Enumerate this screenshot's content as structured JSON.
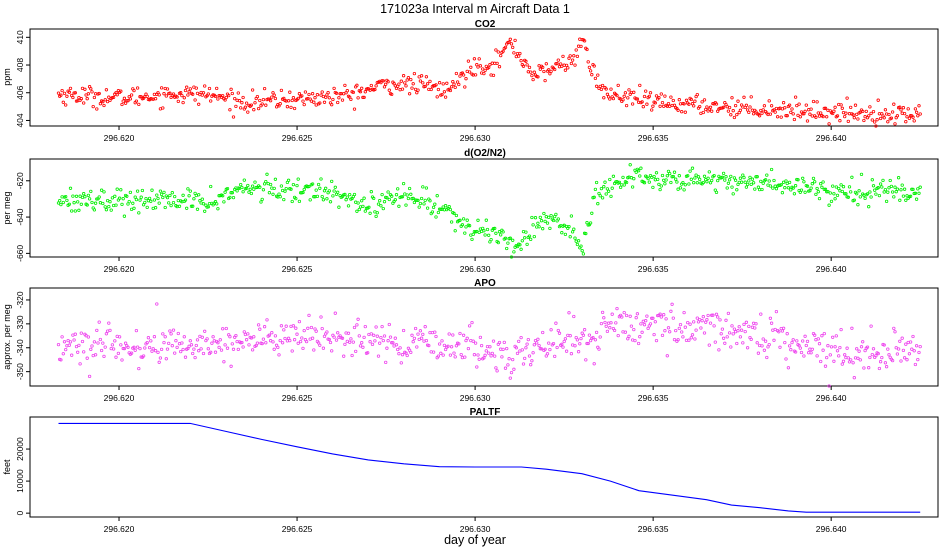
{
  "figure": {
    "title": "171023a   Interval m Aircraft Data 1",
    "xlabel": "day of year"
  },
  "chart_data": [
    {
      "type": "scatter",
      "title": "CO2",
      "ylabel": "ppm",
      "color": "#ff0000",
      "xlim": [
        296.6175,
        296.643
      ],
      "ylim": [
        403.6,
        410.6
      ],
      "xticks": [
        "296.620",
        "296.625",
        "296.630",
        "296.635",
        "296.640"
      ],
      "xtick_values": [
        296.62,
        296.625,
        296.63,
        296.635,
        296.64
      ],
      "yticks": [
        "404",
        "406",
        "408",
        "410"
      ],
      "ytick_values": [
        404,
        406,
        408,
        410
      ],
      "x_start": 296.6183,
      "x_end": 296.6425,
      "n_points": 720,
      "noise": 0.35,
      "trend_x": [
        296.6183,
        296.62,
        296.6215,
        296.6225,
        296.6235,
        296.6255,
        296.6265,
        296.6275,
        296.6285,
        296.6292,
        296.63,
        296.6305,
        296.631,
        296.6313,
        296.6317,
        296.6322,
        296.6327,
        296.633,
        296.6332,
        296.6336,
        296.635,
        296.637,
        296.64,
        296.6425
      ],
      "trend_y": [
        405.9,
        405.6,
        405.9,
        405.9,
        405.3,
        405.6,
        405.8,
        406.6,
        406.6,
        406.1,
        408.0,
        408.0,
        409.6,
        408.5,
        407.2,
        407.8,
        408.3,
        409.7,
        408.2,
        406.0,
        405.3,
        405.0,
        404.6,
        404.4
      ]
    },
    {
      "type": "scatter",
      "title": "d(O2/N2)",
      "ylabel": "per meg",
      "color": "#00ee00",
      "xlim": [
        296.6175,
        296.643
      ],
      "ylim": [
        -662,
        -608
      ],
      "xticks": [
        "296.620",
        "296.625",
        "296.630",
        "296.635",
        "296.640"
      ],
      "xtick_values": [
        296.62,
        296.625,
        296.63,
        296.635,
        296.64
      ],
      "yticks": [
        "-620",
        "-640",
        "-660"
      ],
      "ytick_values": [
        -620,
        -640,
        -660
      ],
      "x_start": 296.6183,
      "x_end": 296.6425,
      "n_points": 720,
      "noise": 3.2,
      "trend_x": [
        296.6183,
        296.62,
        296.6215,
        296.6225,
        296.6235,
        296.625,
        296.626,
        296.627,
        296.628,
        296.629,
        296.63,
        296.6308,
        296.6312,
        296.632,
        296.6327,
        296.633,
        296.6334,
        296.6345,
        296.636,
        296.638,
        296.64,
        296.6425
      ],
      "trend_y": [
        -630,
        -631,
        -631,
        -632,
        -624,
        -626,
        -625,
        -634,
        -628,
        -634,
        -648,
        -650,
        -656,
        -639,
        -648,
        -656,
        -626,
        -618,
        -619,
        -621,
        -625,
        -626
      ]
    },
    {
      "type": "scatter",
      "title": "APO",
      "ylabel": "approx. per meg",
      "color": "#ee44ee",
      "xlim": [
        296.6175,
        296.643
      ],
      "ylim": [
        -356,
        -315
      ],
      "xticks": [
        "296.620",
        "296.625",
        "296.630",
        "296.635",
        "296.640"
      ],
      "xtick_values": [
        296.62,
        296.625,
        296.63,
        296.635,
        296.64
      ],
      "yticks": [
        "-320",
        "-330",
        "-340",
        "-350"
      ],
      "ytick_values": [
        -320,
        -330,
        -340,
        -350
      ],
      "x_start": 296.6183,
      "x_end": 296.6425,
      "n_points": 720,
      "noise": 4.0,
      "trend_x": [
        296.6183,
        296.62,
        296.622,
        296.624,
        296.626,
        296.628,
        296.63,
        296.631,
        296.632,
        296.633,
        296.634,
        296.635,
        296.637,
        296.6385,
        296.64,
        296.6425
      ],
      "trend_y": [
        -339,
        -340,
        -339,
        -336,
        -336,
        -338,
        -340,
        -344,
        -338,
        -337,
        -330,
        -331,
        -332,
        -336,
        -341,
        -342
      ]
    },
    {
      "type": "line",
      "title": "PALTF",
      "ylabel": "feet",
      "color": "#0000ff",
      "xlim": [
        296.6175,
        296.643
      ],
      "ylim": [
        -1200,
        30000
      ],
      "xticks": [
        "296.620",
        "296.625",
        "296.630",
        "296.635",
        "296.640"
      ],
      "xtick_values": [
        296.62,
        296.625,
        296.63,
        296.635,
        296.64
      ],
      "yticks": [
        "0",
        "10000",
        "20000"
      ],
      "ytick_values": [
        0,
        10000,
        20000
      ],
      "x": [
        296.6183,
        296.62,
        296.622,
        296.623,
        296.624,
        296.625,
        296.626,
        296.627,
        296.628,
        296.629,
        296.63,
        296.6313,
        296.632,
        296.633,
        296.6338,
        296.6346,
        296.6355,
        296.6365,
        296.6372,
        296.638,
        296.6388,
        296.6393,
        296.64,
        296.6425
      ],
      "y": [
        28000,
        28000,
        28000,
        25500,
        23000,
        20700,
        18500,
        16600,
        15400,
        14500,
        14400,
        14400,
        13700,
        12300,
        10000,
        7000,
        5700,
        4200,
        2500,
        1700,
        700,
        300,
        300,
        300
      ]
    }
  ]
}
